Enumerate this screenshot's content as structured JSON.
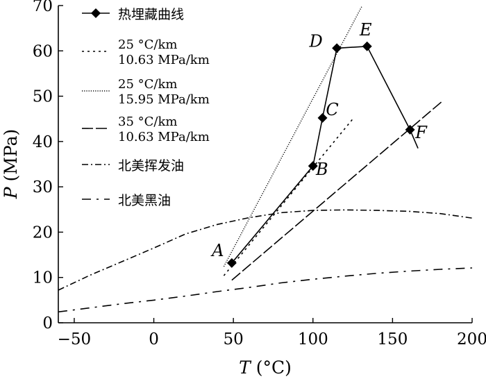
{
  "chart_data": {
    "type": "line",
    "xlabel": "T (°C)",
    "ylabel": "P (MPa)",
    "xlim": [
      -60,
      200
    ],
    "ylim": [
      0,
      70
    ],
    "xticks": [
      -50,
      0,
      50,
      100,
      150,
      200
    ],
    "yticks": [
      0,
      10,
      20,
      30,
      40,
      50,
      60,
      70
    ],
    "series": [
      {
        "name": "热埋藏曲线",
        "style": "solid-diamond",
        "x": [
          49,
          100,
          106,
          115,
          134,
          161
        ],
        "y": [
          13.2,
          34.6,
          45.2,
          60.6,
          61.0,
          42.6
        ],
        "point_labels": [
          "A",
          "B",
          "C",
          "D",
          "E",
          "F"
        ],
        "extra_segment_end": [
          166,
          38.5
        ]
      },
      {
        "name": "25 °C/km\n10.63 MPa/km",
        "style": "dashed-short",
        "x": [
          44,
          126
        ],
        "y": [
          10.4,
          45.4
        ]
      },
      {
        "name": "25 °C/km\n15.95 MPa/km",
        "style": "dotted",
        "x": [
          44,
          131
        ],
        "y": [
          12.4,
          70
        ]
      },
      {
        "name": "35 °C/km\n10.63 MPa/km",
        "style": "long-dash",
        "x": [
          49,
          181
        ],
        "y": [
          9.4,
          48.8
        ]
      },
      {
        "name": "北美挥发油",
        "style": "dash-dot",
        "x": [
          -60,
          -40,
          -20,
          0,
          20,
          40,
          60,
          80,
          100,
          120,
          140,
          160,
          180,
          200
        ],
        "y": [
          7.2,
          10.5,
          13.5,
          16.5,
          19.6,
          21.7,
          23.2,
          24.3,
          24.8,
          24.9,
          24.8,
          24.6,
          24.1,
          23.1
        ]
      },
      {
        "name": "北美黑油",
        "style": "dash-dot-sparse",
        "x": [
          -60,
          -40,
          -20,
          0,
          20,
          40,
          60,
          80,
          100,
          120,
          140,
          160,
          180,
          200
        ],
        "y": [
          2.4,
          3.3,
          4.2,
          5.0,
          5.9,
          6.9,
          7.8,
          8.8,
          9.6,
          10.3,
          10.9,
          11.4,
          11.8,
          12.1
        ]
      }
    ]
  }
}
